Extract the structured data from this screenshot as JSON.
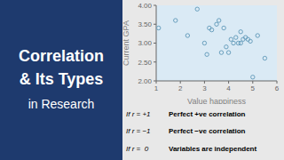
{
  "chart_data": {
    "type": "scatter",
    "title": [
      "Correlation",
      "& Its Types"
    ],
    "subtitle": "in Research",
    "x_label": "Value happiness",
    "y_label": "Current GPA",
    "x": [
      1.1,
      1.8,
      2.3,
      2.7,
      3.0,
      3.1,
      3.2,
      3.3,
      3.5,
      3.6,
      3.7,
      3.8,
      3.9,
      4.0,
      4.1,
      4.2,
      4.3,
      4.4,
      4.5,
      4.5,
      4.6,
      4.7,
      4.8,
      4.9,
      5.0,
      5.2,
      5.5
    ],
    "values": [
      3.4,
      3.6,
      3.2,
      3.9,
      3.0,
      2.7,
      3.4,
      3.35,
      3.5,
      3.6,
      2.75,
      3.4,
      2.9,
      2.75,
      3.1,
      3.0,
      3.15,
      3.0,
      3.3,
      3.0,
      3.1,
      3.15,
      3.1,
      3.05,
      2.1,
      3.2,
      2.6
    ],
    "color": "#6aa0be",
    "marker": "circle",
    "xlim": [
      1,
      6
    ],
    "ylim": [
      2.0,
      4.0
    ],
    "xticks": [
      1,
      2,
      3,
      4,
      5,
      6
    ],
    "yticks": [
      {
        "value": 2.0,
        "label": "2.00"
      },
      {
        "value": 2.5,
        "label": "2.50"
      },
      {
        "value": 3.0,
        "label": "3.00"
      },
      {
        "value": 3.5,
        "label": "3.50"
      },
      {
        "value": 4.0,
        "label": "4.00"
      }
    ],
    "grid": false,
    "annotations": [
      [
        "If r = +1",
        "Perfect +ve correlation"
      ],
      [
        "If r = −1",
        "Perfect −ve correlation"
      ],
      [
        "If r =  0",
        "Variables are independent"
      ]
    ]
  }
}
